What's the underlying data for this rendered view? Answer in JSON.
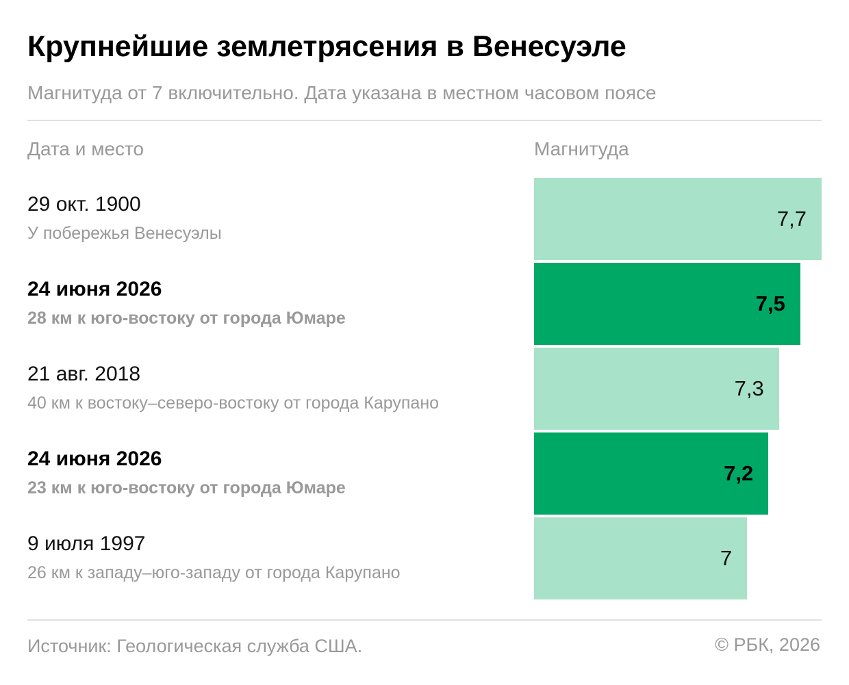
{
  "header": {
    "title": "Крупнейшие землетрясения в Венесуэле",
    "subtitle": "Магнитуда от 7 включительно. Дата указана в местном часовом поясе"
  },
  "columns": {
    "left": "Дата и место",
    "right": "Магнитуда"
  },
  "footer": {
    "source": "Источник: Геологическая служба США.",
    "copyright": "© РБК, 2026"
  },
  "colors": {
    "highlight_bar": "#00a866",
    "regular_bar": "#a8e2c8",
    "muted_text": "#999999"
  },
  "chart_data": {
    "type": "bar",
    "orientation": "horizontal",
    "title": "Крупнейшие землетрясения в Венесуэле",
    "subtitle": "Магнитуда от 7 включительно. Дата указана в местном часовом поясе",
    "xlabel": "Магнитуда",
    "ylabel": "Дата и место",
    "xlim": [
      0,
      7.7
    ],
    "grid": false,
    "rows": [
      {
        "date": "29 окт. 1900",
        "place": "У побережья Венесуэлы",
        "value": 7.7,
        "label": "7,7",
        "highlight": false
      },
      {
        "date": "24 июня 2026",
        "place": "28 км к юго-востоку от города Юмаре",
        "value": 7.5,
        "label": "7,5",
        "highlight": true
      },
      {
        "date": "21 авг. 2018",
        "place": "40 км к востоку–северо-востоку от города Карупано",
        "value": 7.3,
        "label": "7,3",
        "highlight": false
      },
      {
        "date": "24 июня 2026",
        "place": "23 км к юго-востоку от города Юмаре",
        "value": 7.2,
        "label": "7,2",
        "highlight": true
      },
      {
        "date": "9 июля 1997",
        "place": "26 км к западу–юго-западу от города Карупано",
        "value": 7.0,
        "label": "7",
        "highlight": false
      }
    ]
  }
}
